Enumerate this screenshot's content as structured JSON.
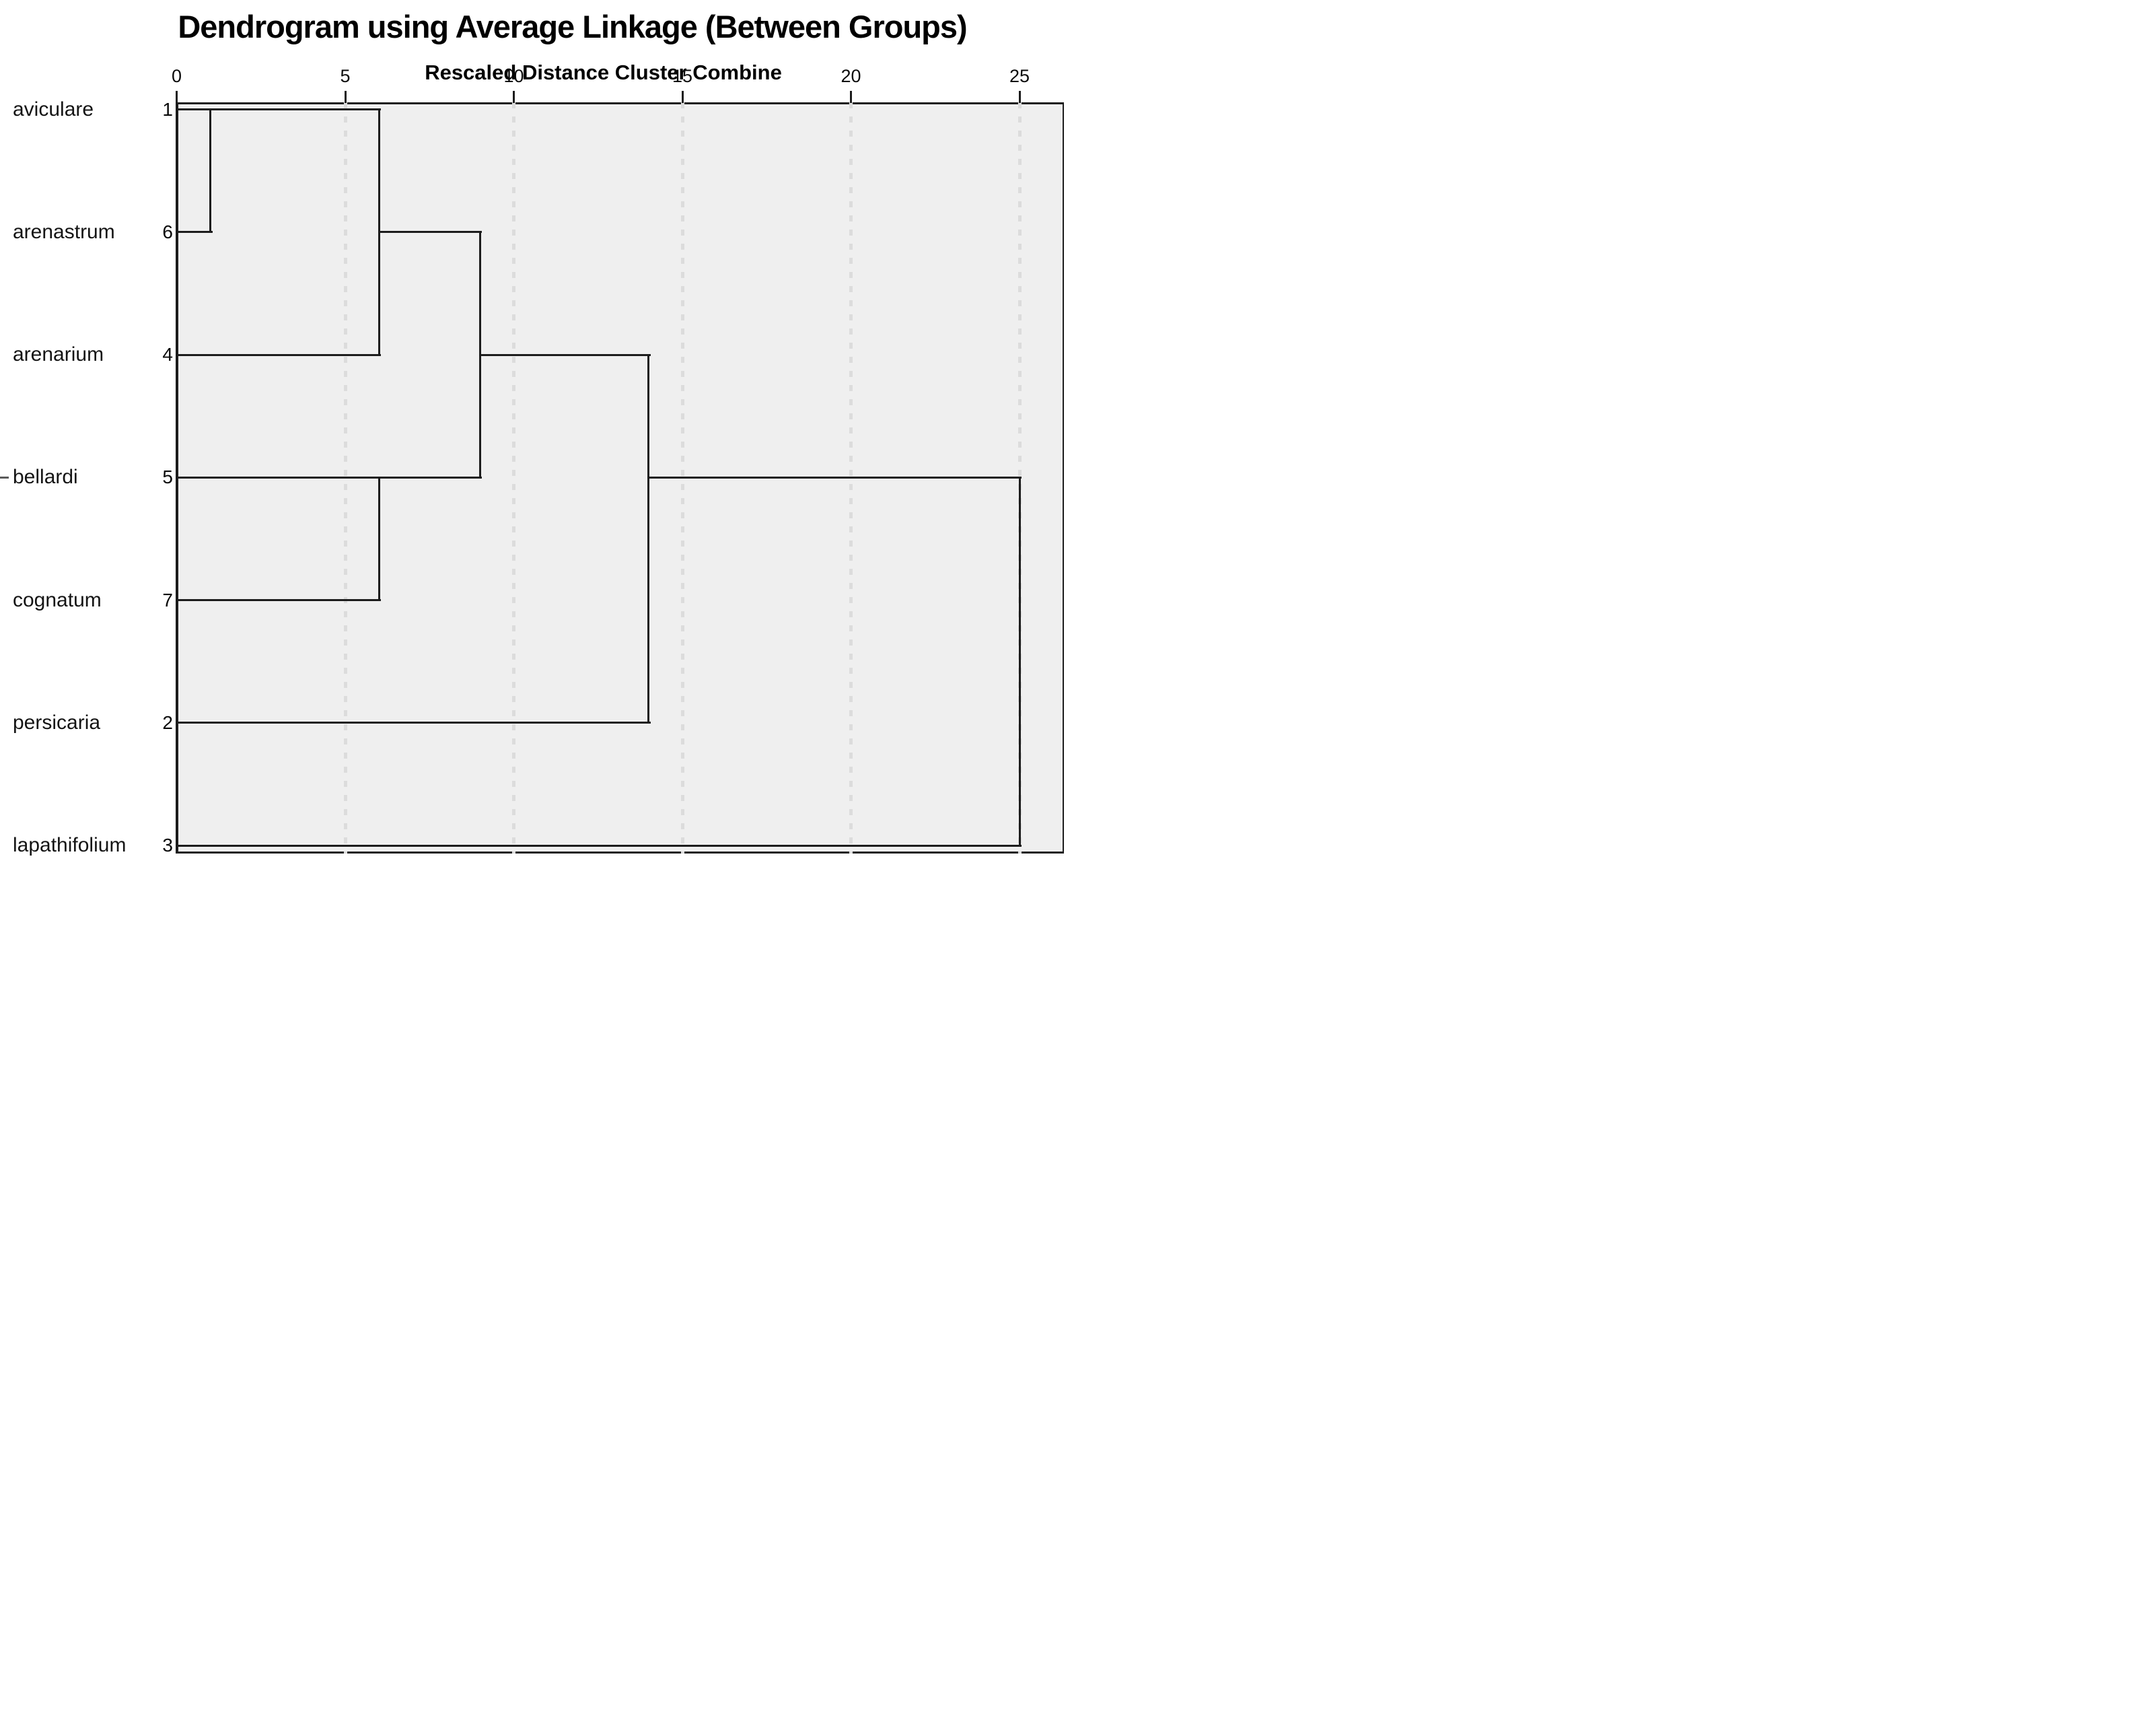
{
  "chart_data": {
    "type": "dendrogram",
    "orientation": "horizontal",
    "title": "Dendrogram using Average Linkage (Between Groups)",
    "subtitle": "Rescaled Distance Cluster Combine",
    "x_axis": {
      "range": [
        0,
        25
      ],
      "ticks": [
        0,
        5,
        10,
        15,
        20,
        25
      ],
      "gridlines": [
        5,
        10,
        15,
        20,
        25
      ],
      "gridline_style": "dashed"
    },
    "leaves": [
      {
        "label": "aviculare",
        "case": "1",
        "line_to": 6
      },
      {
        "label": "arenastrum",
        "case": "6",
        "line_to": 1
      },
      {
        "label": "arenarium",
        "case": "4",
        "line_to": 6
      },
      {
        "label": "bellardi",
        "case": "5",
        "line_to": 9
      },
      {
        "label": "cognatum",
        "case": "7",
        "line_to": 6
      },
      {
        "label": "persicaria",
        "case": "2",
        "line_to": 14
      },
      {
        "label": "lapathifolium",
        "case": "3",
        "line_to": 25
      }
    ],
    "merges": [
      {
        "joins": [
          "aviculare",
          "arenastrum"
        ],
        "distance": 1
      },
      {
        "joins": [
          "cluster(aviculare,arenastrum)",
          "arenarium"
        ],
        "distance": 6
      },
      {
        "joins": [
          "bellardi",
          "cognatum"
        ],
        "distance": 6
      },
      {
        "joins": [
          "cluster(aviculare,arenastrum,arenarium)",
          "cluster(bellardi,cognatum)"
        ],
        "distance": 9
      },
      {
        "joins": [
          "cluster(aviculare,arenastrum,arenarium,bellardi,cognatum)",
          "persicaria"
        ],
        "distance": 14
      },
      {
        "joins": [
          "cluster(aviculare,arenastrum,arenarium,bellardi,cognatum,persicaria)",
          "lapathifolium"
        ],
        "distance": 25
      }
    ],
    "render": {
      "verticals": [
        {
          "d": 1,
          "r1": 0,
          "r2": 1
        },
        {
          "d": 6,
          "r1": 0,
          "r2": 2
        },
        {
          "d": 6,
          "r1": 3,
          "r2": 4
        },
        {
          "d": 9,
          "r1": 1,
          "r2": 3
        },
        {
          "d": 14,
          "r1": 2,
          "r2": 5
        },
        {
          "d": 25,
          "r1": 3,
          "r2": 6
        }
      ],
      "connectors": [
        {
          "row": 1,
          "d1": 6,
          "d2": 9
        },
        {
          "row": 2,
          "d1": 9,
          "d2": 14
        },
        {
          "row": 3,
          "d1": 6,
          "d2": 9
        },
        {
          "row": 3,
          "d1": 14,
          "d2": 25
        }
      ]
    },
    "colors": {
      "line": "#1c1c1c",
      "plot_background": "#efefef",
      "gridline": "#dcdcdc",
      "page_background": "#ffffff",
      "text": "#0a0a0a"
    }
  }
}
